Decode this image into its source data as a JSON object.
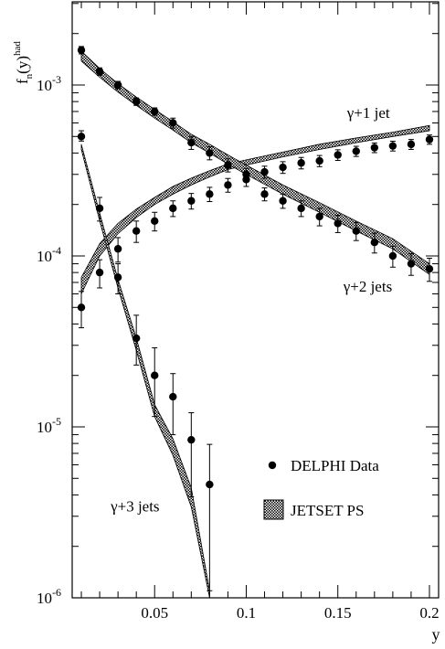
{
  "chart_data": {
    "type": "scatter",
    "title": "",
    "xlabel": "y",
    "ylabel_main": "f",
    "ylabel_sub": "n",
    "ylabel_arg": "(y)",
    "ylabel_sup": "had",
    "log_y": true,
    "xlim": [
      0.005,
      0.205
    ],
    "ylim": [
      1e-06,
      0.004
    ],
    "x_ticks": [
      {
        "value": 0.05,
        "label": "0.05"
      },
      {
        "value": 0.1,
        "label": "0.1"
      },
      {
        "value": 0.15,
        "label": "0.15"
      },
      {
        "value": 0.2,
        "label": "0.2"
      }
    ],
    "y_ticks": [
      {
        "value": 0.001,
        "base": "10",
        "exp": "-3"
      },
      {
        "value": 0.0001,
        "base": "10",
        "exp": "-4"
      },
      {
        "value": 1e-05,
        "base": "10",
        "exp": "-5"
      },
      {
        "value": 1e-06,
        "base": "10",
        "exp": "-6"
      }
    ],
    "series": [
      {
        "name": "γ+1 jet",
        "x": [
          0.01,
          0.02,
          0.03,
          0.04,
          0.05,
          0.06,
          0.07,
          0.08,
          0.09,
          0.1,
          0.11,
          0.12,
          0.13,
          0.14,
          0.15,
          0.16,
          0.17,
          0.18,
          0.19,
          0.2
        ],
        "y": [
          5e-05,
          8e-05,
          0.00011,
          0.00014,
          0.00016,
          0.00019,
          0.00021,
          0.00023,
          0.00026,
          0.00028,
          0.00031,
          0.00033,
          0.00035,
          0.00036,
          0.00039,
          0.00041,
          0.00043,
          0.00044,
          0.00045,
          0.00048
        ],
        "err": [
          1.2e-05,
          1.5e-05,
          1.8e-05,
          2e-05,
          2e-05,
          2e-05,
          2.2e-05,
          2.2e-05,
          2.4e-05,
          2.5e-05,
          2.5e-05,
          2.6e-05,
          2.7e-05,
          2.7e-05,
          2.8e-05,
          2.8e-05,
          2.8e-05,
          2.9e-05,
          3e-05,
          3e-05
        ],
        "band_x": [
          0.01,
          0.02,
          0.03,
          0.04,
          0.05,
          0.06,
          0.07,
          0.08,
          0.09,
          0.1,
          0.12,
          0.14,
          0.16,
          0.18,
          0.2
        ],
        "band_lo": [
          6e-05,
          0.0001,
          0.000135,
          0.000168,
          0.0002,
          0.00023,
          0.00026,
          0.00029,
          0.00032,
          0.00034,
          0.00038,
          0.00042,
          0.00046,
          0.0005,
          0.00054
        ],
        "band_hi": [
          7.5e-05,
          0.000118,
          0.000155,
          0.000188,
          0.00022,
          0.000255,
          0.000285,
          0.000315,
          0.000345,
          0.000365,
          0.000405,
          0.00045,
          0.00049,
          0.00053,
          0.00058
        ]
      },
      {
        "name": "γ+2 jets",
        "x": [
          0.01,
          0.02,
          0.03,
          0.04,
          0.05,
          0.06,
          0.07,
          0.08,
          0.09,
          0.1,
          0.11,
          0.12,
          0.13,
          0.14,
          0.15,
          0.16,
          0.17,
          0.18,
          0.19,
          0.2
        ],
        "y": [
          0.0016,
          0.0012,
          0.001,
          0.0008,
          0.0007,
          0.0006,
          0.00046,
          0.0004,
          0.00034,
          0.0003,
          0.00023,
          0.00021,
          0.00019,
          0.00017,
          0.000155,
          0.00014,
          0.00012,
          0.0001,
          9e-05,
          8.4e-05
        ],
        "err": [
          8e-05,
          6e-05,
          5e-05,
          4e-05,
          3.5e-05,
          4e-05,
          4e-05,
          3.5e-05,
          3e-05,
          2.5e-05,
          2e-05,
          2e-05,
          2e-05,
          2e-05,
          1.8e-05,
          1.7e-05,
          1.6e-05,
          1.4e-05,
          1.3e-05,
          1.3e-05
        ],
        "band_x": [
          0.01,
          0.02,
          0.03,
          0.04,
          0.05,
          0.06,
          0.07,
          0.08,
          0.09,
          0.1,
          0.12,
          0.14,
          0.16,
          0.18,
          0.2
        ],
        "band_lo": [
          0.00138,
          0.00111,
          0.00091,
          0.00076,
          0.00064,
          0.000545,
          0.00046,
          0.0004,
          0.000345,
          0.0003,
          0.00023,
          0.00018,
          0.00014,
          0.00011,
          7.8e-05
        ],
        "band_hi": [
          0.00158,
          0.00125,
          0.00102,
          0.00085,
          0.00072,
          0.00061,
          0.000515,
          0.00045,
          0.00039,
          0.00034,
          0.00026,
          0.000205,
          0.00016,
          0.000126,
          9e-05
        ]
      },
      {
        "name": "γ+3 jets",
        "x": [
          0.01,
          0.02,
          0.03,
          0.04,
          0.05,
          0.06,
          0.07,
          0.08
        ],
        "y": [
          0.0005,
          0.00019,
          7.5e-05,
          3.3e-05,
          2e-05,
          1.5e-05,
          8.4e-06,
          4.6e-06
        ],
        "err_lo": [
          3e-05,
          3e-05,
          1.5e-05,
          1e-05,
          8.5e-06,
          6e-06,
          4.5e-06,
          3.5e-06
        ],
        "err_hi": [
          4e-05,
          3e-05,
          1.5e-05,
          1.2e-05,
          9e-06,
          5.5e-06,
          3.7e-06,
          3.3e-06
        ],
        "band_x": [
          0.01,
          0.02,
          0.03,
          0.04,
          0.05,
          0.06,
          0.07,
          0.08
        ],
        "band_lo": [
          0.00042,
          0.00016,
          6.5e-05,
          2.8e-05,
          1.15e-05,
          6.8e-06,
          3.4e-06,
          9e-07
        ],
        "band_hi": [
          0.00045,
          0.000178,
          7.3e-05,
          3.3e-05,
          1.35e-05,
          8.5e-06,
          4.4e-06,
          1.1e-06
        ]
      }
    ],
    "labels": [
      {
        "text": "γ+1 jet",
        "x": 0.155,
        "y": 0.00064
      },
      {
        "text": "γ+2 jets",
        "x": 0.153,
        "y": 6.2e-05
      },
      {
        "text": "γ+3 jets",
        "x": 0.026,
        "y": 3.2e-06
      }
    ],
    "legend": {
      "placement": "bottom-right",
      "entries": [
        {
          "kind": "marker",
          "label": "DELPHI  Data"
        },
        {
          "kind": "band",
          "label": "JETSET PS"
        }
      ]
    }
  }
}
